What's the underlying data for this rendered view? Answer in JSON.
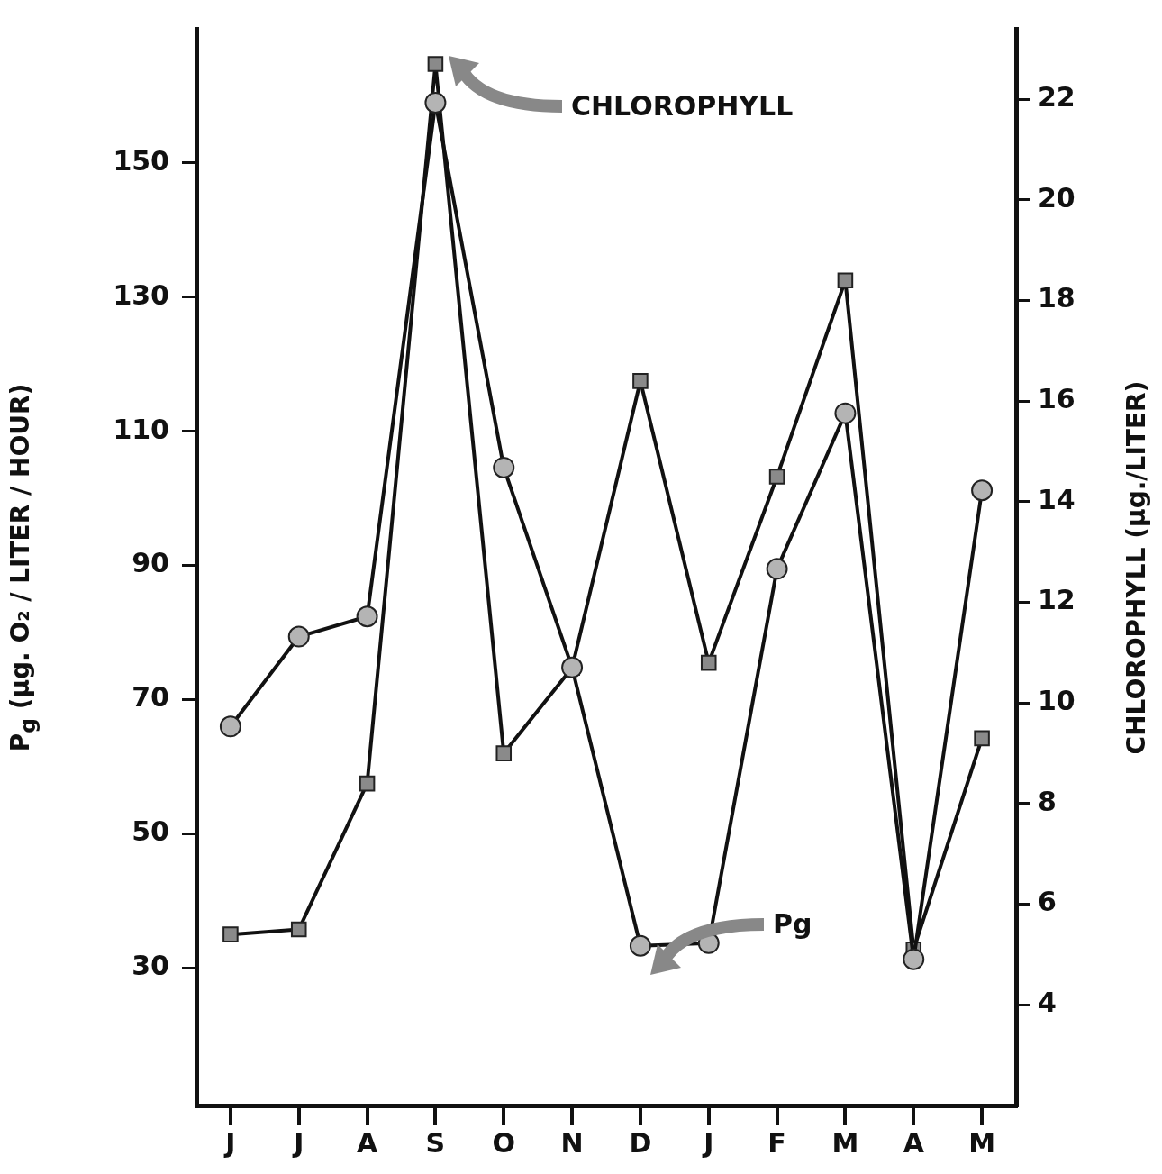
{
  "chart_data": {
    "type": "line",
    "categories": [
      "J",
      "J",
      "A",
      "S",
      "O",
      "N",
      "D",
      "J",
      "F",
      "M",
      "A",
      "M"
    ],
    "ylabel": "P$_{g}$   (µg. O₂ / LITER / HOUR)",
    "y2label": "CHLOROPHYLL  (µg./LITER)",
    "ylim": [
      9.5,
      170
    ],
    "yticks": [
      30,
      50,
      70,
      90,
      110,
      130,
      150
    ],
    "y2lim": [
      2,
      23.4
    ],
    "y2ticks": [
      4,
      6,
      8,
      10,
      12,
      14,
      16,
      18,
      20,
      22
    ],
    "marker": "circle",
    "line_style": "solid",
    "series": [
      {
        "color": "#b4b4b4",
        "values": [
          66,
          79.4,
          82.4,
          159,
          104.6,
          74.8,
          33.3,
          33.7,
          89.5,
          112.7,
          31.3,
          101.2
        ]
      },
      {
        "marker": "square",
        "axis": "y2",
        "color": "#8a8a8a",
        "values": [
          5.4,
          5.5,
          8.4,
          22.7,
          9,
          10.7,
          16.4,
          10.8,
          14.5,
          18.4,
          5.1,
          9.3
        ]
      }
    ],
    "annotations": [
      "CHLOROPHYLL",
      "Pg"
    ]
  }
}
